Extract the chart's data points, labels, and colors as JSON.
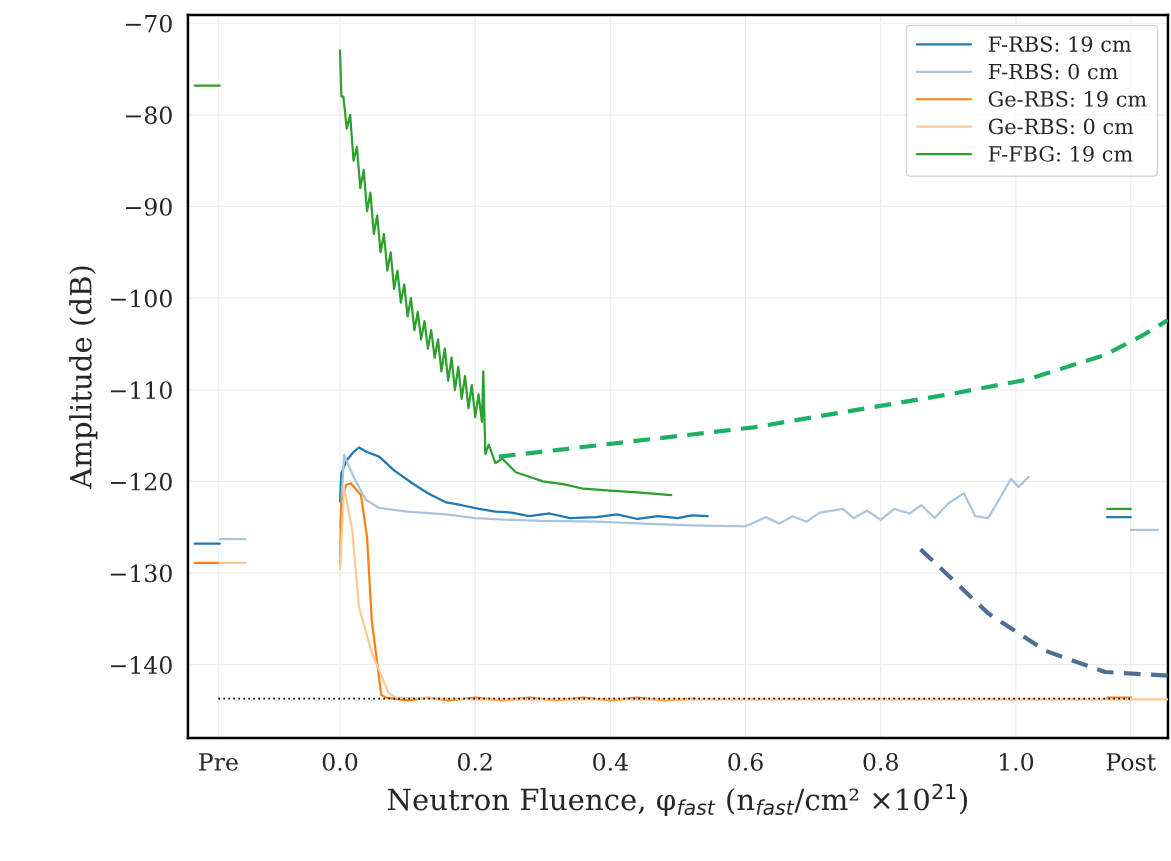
{
  "chart_data": {
    "type": "line",
    "xlabel": "Neutron Fluence, φ$_{fast}$ (n$_{fast}$/cm² ×10$^{21}$)",
    "ylabel": "Amplitude (dB)",
    "xlim": [
      -0.225,
      1.225
    ],
    "ylim": [
      -148,
      -69.1
    ],
    "xticks": [
      {
        "value": -0.18,
        "label": "Pre"
      },
      {
        "value": 0.0,
        "label": "0.0"
      },
      {
        "value": 0.2,
        "label": "0.2"
      },
      {
        "value": 0.4,
        "label": "0.4"
      },
      {
        "value": 0.6,
        "label": "0.6"
      },
      {
        "value": 0.8,
        "label": "0.8"
      },
      {
        "value": 1.0,
        "label": "1.0"
      },
      {
        "value": 1.17,
        "label": "Post"
      }
    ],
    "yticks": [
      -140,
      -130,
      -120,
      -110,
      -100,
      -90,
      -80,
      -70
    ],
    "grid": true,
    "legend": "top right",
    "series": [
      {
        "name": "F-RBS: 19 cm",
        "color": "#1f77b4",
        "x": [
          -0.215,
          -0.178,
          null,
          0.0,
          0.002,
          0.01,
          0.02,
          0.028,
          0.04,
          0.058,
          0.08,
          0.107,
          0.13,
          0.157,
          0.18,
          0.206,
          0.23,
          0.254,
          0.28,
          0.31,
          0.34,
          0.379,
          0.41,
          0.44,
          0.47,
          0.5,
          0.52,
          0.544,
          null,
          1.135,
          1.17
        ],
        "values": [
          -126.8,
          -126.8,
          null,
          -122.2,
          -119.1,
          -117.7,
          -116.8,
          -116.3,
          -116.8,
          -117.3,
          -118.8,
          -120.2,
          -121.3,
          -122.3,
          -122.6,
          -123.0,
          -123.3,
          -123.4,
          -123.8,
          -123.5,
          -124.0,
          -123.9,
          -123.6,
          -124.1,
          -123.8,
          -124.0,
          -123.7,
          -123.8,
          null,
          -123.9,
          -123.9
        ]
      },
      {
        "name": "F-RBS: 0 cm",
        "color": "#a9c5de",
        "x": [
          -0.178,
          -0.14,
          null,
          0.0,
          0.006,
          0.02,
          0.038,
          0.058,
          0.1,
          0.157,
          0.2,
          0.254,
          0.3,
          0.379,
          0.45,
          0.52,
          0.6,
          0.63,
          0.65,
          0.67,
          0.69,
          0.71,
          0.744,
          0.76,
          0.78,
          0.8,
          0.82,
          0.843,
          0.86,
          0.88,
          0.9,
          0.923,
          0.94,
          0.959,
          0.975,
          0.993,
          1.004,
          1.019,
          null,
          1.17,
          1.21
        ],
        "values": [
          -126.3,
          -126.3,
          null,
          -125.0,
          -117.1,
          -119.5,
          -122.0,
          -122.9,
          -123.3,
          -123.6,
          -124.0,
          -124.2,
          -124.3,
          -124.4,
          -124.6,
          -124.8,
          -124.9,
          -123.9,
          -124.6,
          -123.8,
          -124.4,
          -123.4,
          -123.0,
          -124.0,
          -123.2,
          -124.2,
          -123.0,
          -123.5,
          -122.6,
          -124.0,
          -122.4,
          -121.3,
          -123.8,
          -124.0,
          -122.0,
          -119.7,
          -120.6,
          -119.5,
          null,
          -125.3,
          -125.3
        ]
      },
      {
        "name": "Ge-RBS: 19 cm",
        "color": "#ff7f0e",
        "x": [
          -0.215,
          -0.178,
          null,
          0.0,
          0.002,
          0.009,
          0.016,
          0.031,
          0.04,
          0.047,
          0.061,
          0.068,
          0.1,
          0.13,
          0.16,
          0.2,
          0.24,
          0.28,
          0.32,
          0.36,
          0.4,
          0.44,
          0.48,
          0.525,
          null,
          1.135,
          1.17
        ],
        "values": [
          -128.9,
          -128.9,
          null,
          -129.1,
          -122.3,
          -120.4,
          -120.2,
          -121.5,
          -126.1,
          -135.2,
          -143.3,
          -143.6,
          -143.9,
          -143.6,
          -143.9,
          -143.6,
          -143.9,
          -143.6,
          -143.9,
          -143.6,
          -143.9,
          -143.6,
          -143.9,
          -143.7,
          null,
          -143.6,
          -143.6
        ]
      },
      {
        "name": "Ge-RBS: 0 cm",
        "color": "#fdc796",
        "x": [
          -0.178,
          -0.14,
          null,
          0.0,
          0.006,
          0.018,
          0.028,
          0.047,
          0.072,
          0.083,
          0.2,
          0.4,
          0.6,
          0.8,
          1.0,
          1.225
        ],
        "values": [
          -128.9,
          -128.9,
          null,
          -129.6,
          -120.6,
          -125.3,
          -133.7,
          -138.7,
          -143.1,
          -143.6,
          -143.8,
          -143.8,
          -143.8,
          -143.8,
          -143.8,
          -143.8
        ]
      },
      {
        "name": "F-FBG: 19 cm",
        "color": "#2ca02c",
        "x": [
          -0.215,
          -0.178,
          null,
          0.0,
          0.002,
          0.005,
          0.01,
          0.015,
          0.02,
          0.025,
          0.03,
          0.035,
          0.04,
          0.045,
          0.05,
          0.055,
          0.06,
          0.065,
          0.07,
          0.075,
          0.08,
          0.085,
          0.09,
          0.095,
          0.1,
          0.105,
          0.11,
          0.115,
          0.12,
          0.125,
          0.13,
          0.135,
          0.14,
          0.145,
          0.15,
          0.155,
          0.16,
          0.165,
          0.17,
          0.175,
          0.18,
          0.185,
          0.19,
          0.195,
          0.2,
          0.205,
          0.21,
          0.212,
          0.215,
          0.22,
          0.23,
          0.24,
          0.26,
          0.28,
          0.3,
          0.33,
          0.36,
          0.4,
          0.44,
          0.49,
          null,
          1.135,
          1.17
        ],
        "values": [
          -76.8,
          -76.8,
          null,
          -73,
          -78,
          -78,
          -81.5,
          -80,
          -85,
          -83.5,
          -88,
          -86,
          -90.5,
          -88.5,
          -93,
          -91,
          -95,
          -93,
          -97,
          -95,
          -99,
          -97,
          -100.5,
          -98.5,
          -102,
          -100,
          -103.5,
          -101.5,
          -104.5,
          -102.5,
          -105.5,
          -103.5,
          -106.5,
          -104.5,
          -108,
          -105.5,
          -109,
          -106.5,
          -110,
          -107.5,
          -111,
          -108.5,
          -112,
          -109.5,
          -113,
          -110.5,
          -113.5,
          -108,
          -117,
          -116,
          -118,
          -117.5,
          -119,
          -119.5,
          -120,
          -120.3,
          -120.8,
          -121,
          -121.2,
          -121.5,
          null,
          -123.0,
          -123.0
        ]
      },
      {
        "color": "#1daf64",
        "line_style": "dashed",
        "x": [
          0.235,
          0.4,
          0.612,
          0.901,
          1.016,
          1.132,
          1.189,
          1.225
        ],
        "values": [
          -117.3,
          -115.9,
          -114.1,
          -110.5,
          -108.9,
          -106.2,
          -104.0,
          -102.4
        ]
      },
      {
        "color": "#4c6e94",
        "line_style": "dashed",
        "x": [
          0.859,
          0.959,
          1.044,
          1.132,
          1.225
        ],
        "values": [
          -127.4,
          -134.4,
          -138.5,
          -140.8,
          -141.2
        ]
      },
      {
        "color": "#000000",
        "line_style": "dotted",
        "x": [
          -0.18,
          1.17
        ],
        "values": [
          -143.7,
          -143.7
        ]
      }
    ]
  }
}
